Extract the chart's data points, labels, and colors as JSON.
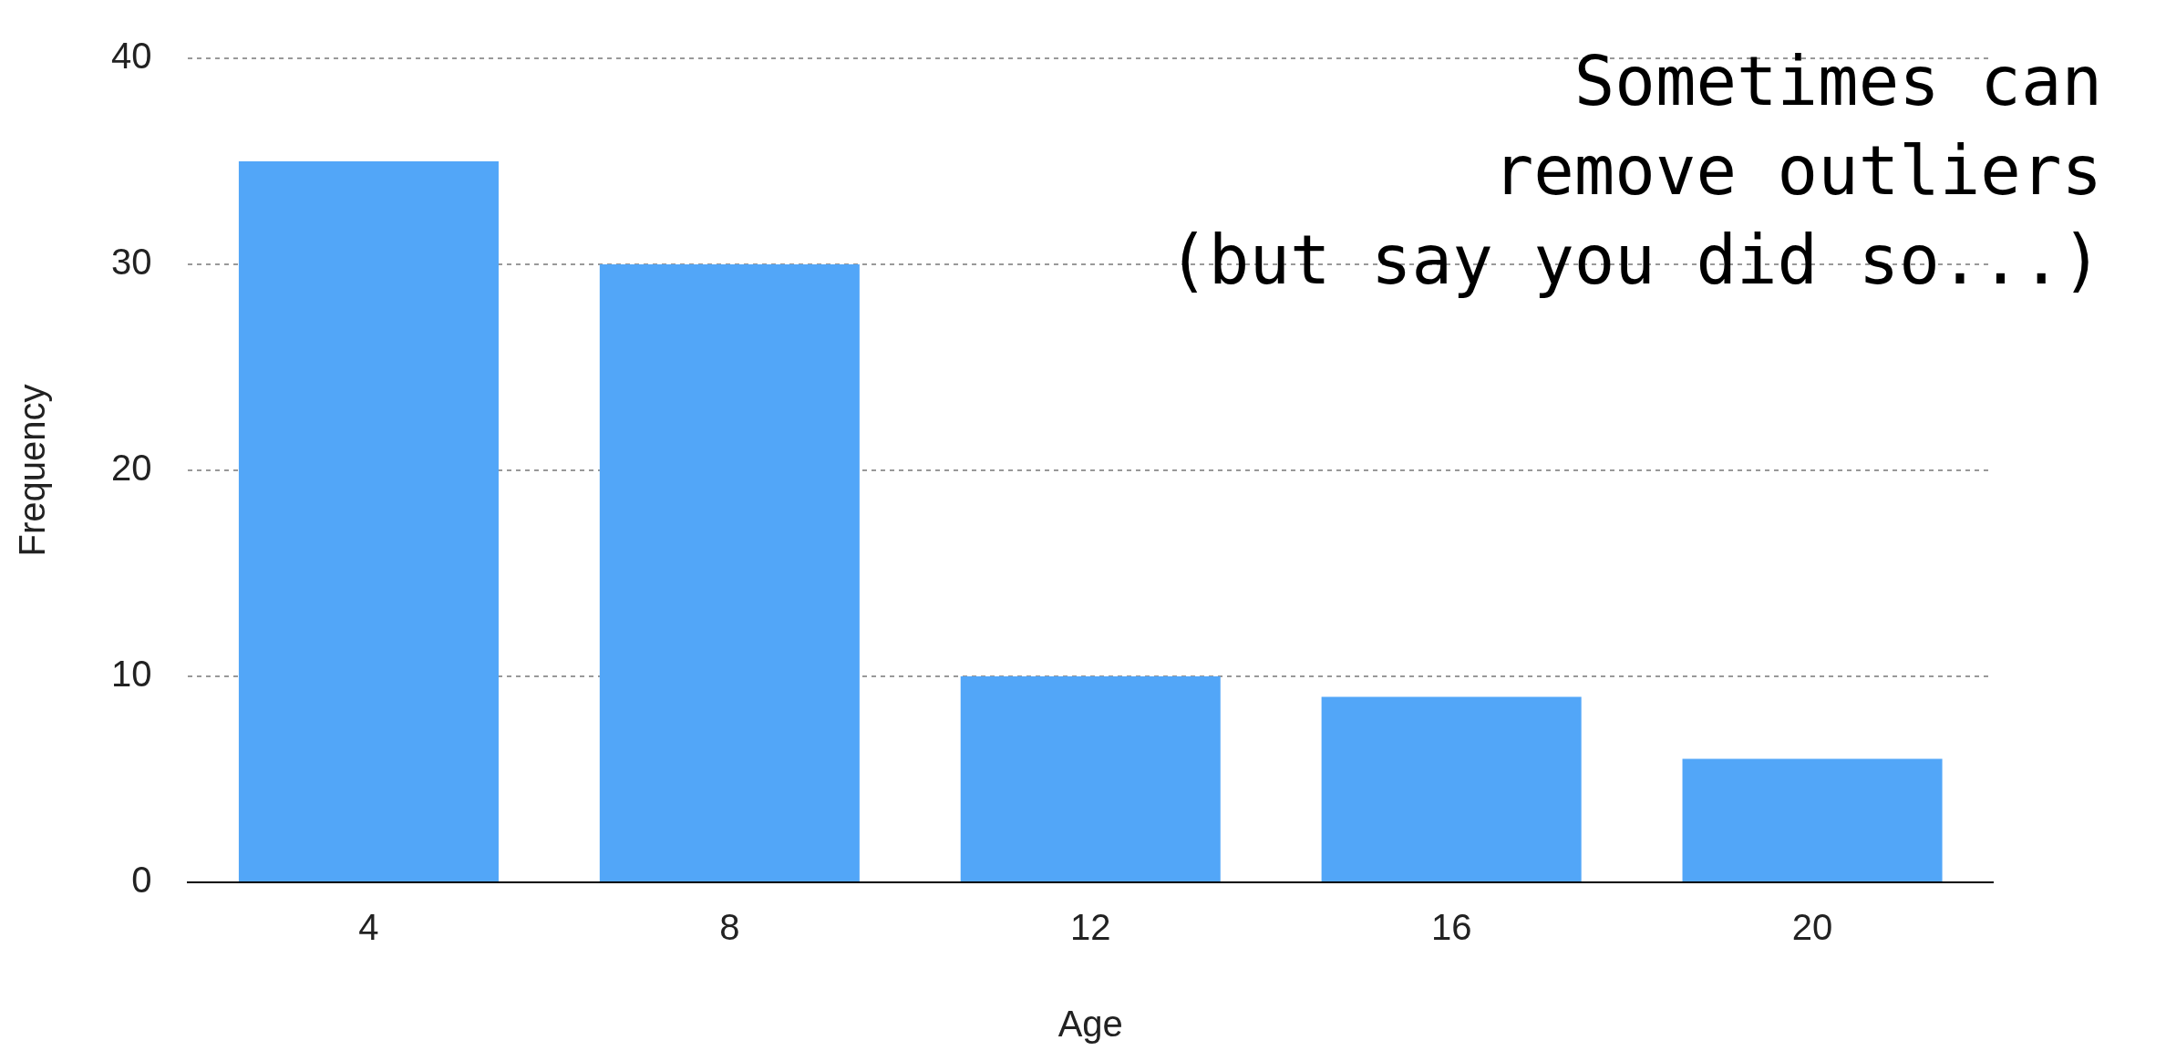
{
  "chart_data": {
    "type": "bar",
    "xlabel": "Age",
    "ylabel": "Frequency",
    "categories": [
      "4",
      "8",
      "12",
      "16",
      "20"
    ],
    "values": [
      35,
      30,
      10,
      9,
      6
    ],
    "color": "#52a6f8",
    "ylim": [
      0,
      40
    ],
    "yticks": [
      0,
      10,
      20,
      30,
      40
    ],
    "grid": "y",
    "legend": false,
    "annotations": [
      "Sometimes can",
      "remove outliers",
      "(but say you did so...)"
    ]
  }
}
